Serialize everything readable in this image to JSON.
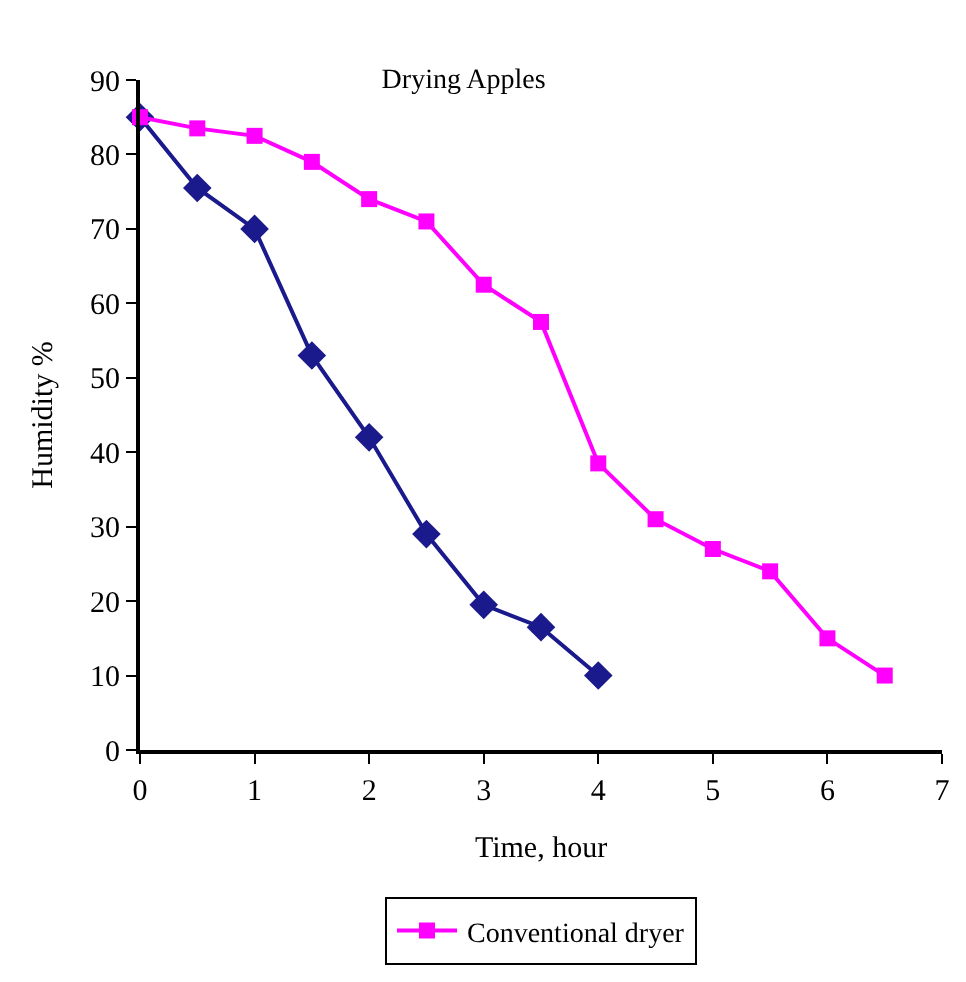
{
  "chart_data": {
    "type": "line",
    "title": "Drying Apples",
    "xlabel": "Time, hour",
    "ylabel": "Humidity %",
    "xlim": [
      0,
      7
    ],
    "xticks": [
      0,
      1,
      2,
      3,
      4,
      5,
      6,
      7
    ],
    "ylim": [
      0,
      90
    ],
    "yticks": [
      0,
      10,
      20,
      30,
      40,
      50,
      60,
      70,
      80,
      90
    ],
    "legend": "bottom",
    "line_style": "solid",
    "series": [
      {
        "color": "#1a1a8c",
        "marker": "diamond",
        "x": [
          0,
          0.5,
          1,
          1.5,
          2,
          2.5,
          3,
          3.5,
          4
        ],
        "values": [
          85,
          75.5,
          70,
          53,
          42,
          29,
          19.5,
          16.5,
          10
        ]
      },
      {
        "name": "Conventional dryer",
        "color": "#ff00ff",
        "marker": "square",
        "x": [
          0,
          0.5,
          1,
          1.5,
          2,
          2.5,
          3,
          3.5,
          4,
          4.5,
          5,
          5.5,
          6,
          6.5
        ],
        "values": [
          85,
          83.5,
          82.5,
          79,
          74,
          71,
          62.5,
          57.5,
          38.5,
          31,
          27,
          24,
          15,
          10
        ]
      }
    ]
  }
}
